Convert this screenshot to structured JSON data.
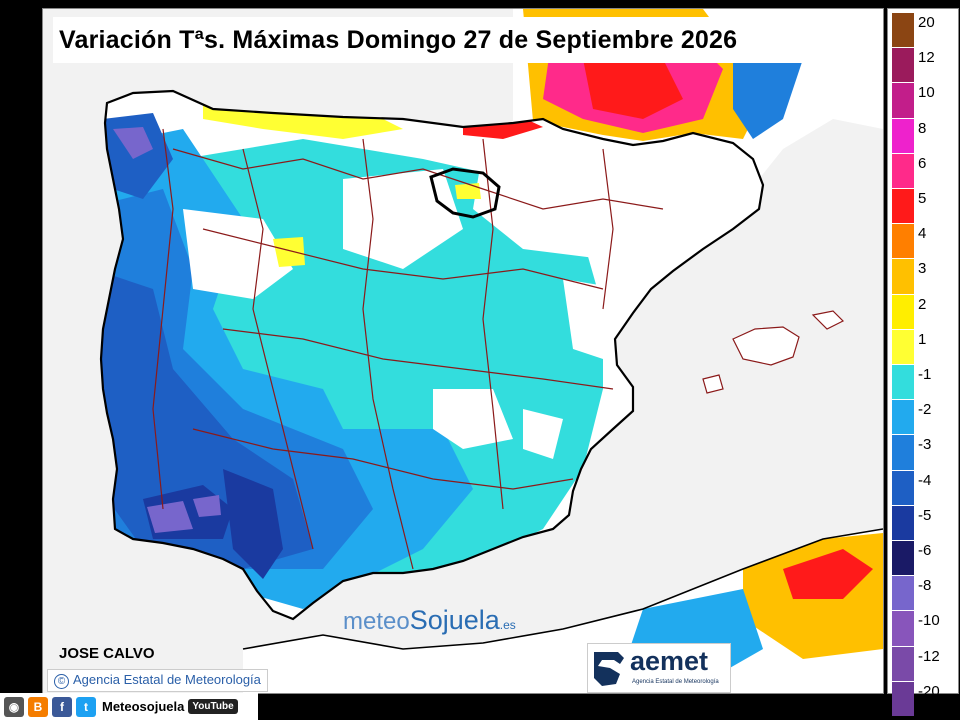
{
  "title": "Variación Tªs. Máximas Domingo 27 de Septiembre 2026",
  "author": "JOSE CALVO",
  "copyright": "Agencia Estatal de Meteorología",
  "watermark": {
    "meteo": "meteo",
    "sojuela": "Sojuela",
    "tld": ".es"
  },
  "aemet_logo": {
    "name": "aemet",
    "subtitle": "Agencia Estatal de Meteorología",
    "ghost": "aemet"
  },
  "social": {
    "name": "Meteosojuela",
    "youtube": "YouTube",
    "icons": [
      "instagram-icon",
      "blogger-icon",
      "facebook-icon",
      "twitter-icon",
      "youtube-icon"
    ]
  },
  "legend": {
    "positive": [
      {
        "label": "20",
        "color": "#8b4513"
      },
      {
        "label": "12",
        "color": "#9b1b5c"
      },
      {
        "label": "10",
        "color": "#c21e8a"
      },
      {
        "label": "8",
        "color": "#ee22cc"
      },
      {
        "label": "6",
        "color": "#ff2a8a"
      },
      {
        "label": "5",
        "color": "#ff1a1a"
      },
      {
        "label": "4",
        "color": "#ff7f00"
      },
      {
        "label": "3",
        "color": "#ffc000"
      },
      {
        "label": "2",
        "color": "#ffee00"
      },
      {
        "label": "1",
        "color": "#ffff33"
      }
    ],
    "negative": [
      {
        "label": "-1",
        "color": "#33dddd"
      },
      {
        "label": "-2",
        "color": "#22aaee"
      },
      {
        "label": "-3",
        "color": "#1f7fdc"
      },
      {
        "label": "-4",
        "color": "#1e5fc4"
      },
      {
        "label": "-5",
        "color": "#1a3aa0"
      },
      {
        "label": "-6",
        "color": "#1a1a66"
      },
      {
        "label": "-8",
        "color": "#7766cc"
      },
      {
        "label": "-10",
        "color": "#8855bb"
      },
      {
        "label": "-12",
        "color": "#7a4aa8"
      },
      {
        "label": "-20",
        "color": "#6a3a96"
      }
    ]
  },
  "map_colors": {
    "sea": "#f2f2f2",
    "land_neutral": "#ffffff",
    "border": "#8b1a1a",
    "coast": "#000000"
  }
}
